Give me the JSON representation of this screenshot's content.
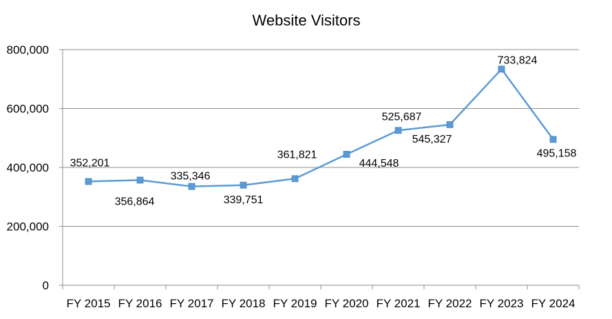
{
  "chart_data": {
    "type": "line",
    "title": "Website Visitors",
    "xlabel": "",
    "ylabel": "",
    "categories": [
      "FY 2015",
      "FY 2016",
      "FY 2017",
      "FY 2018",
      "FY 2019",
      "FY 2020",
      "FY 2021",
      "FY 2022",
      "FY 2023",
      "FY 2024"
    ],
    "series": [
      {
        "values": [
          352201,
          356864,
          335346,
          339751,
          361821,
          444548,
          525687,
          545327,
          733824,
          495158
        ],
        "labels": [
          "352,201",
          "356,864",
          "335,346",
          "339,751",
          "361,821",
          "444,548",
          "525,687",
          "545,327",
          "733,824",
          "495,158"
        ],
        "color": "#5b9bd5",
        "marker": "square"
      }
    ],
    "ylim": [
      0,
      800000
    ],
    "yticks": [
      0,
      200000,
      400000,
      600000,
      800000
    ],
    "ytick_labels": [
      "0",
      "200,000",
      "400,000",
      "600,000",
      "800,000"
    ],
    "grid": true,
    "legend": "none"
  }
}
